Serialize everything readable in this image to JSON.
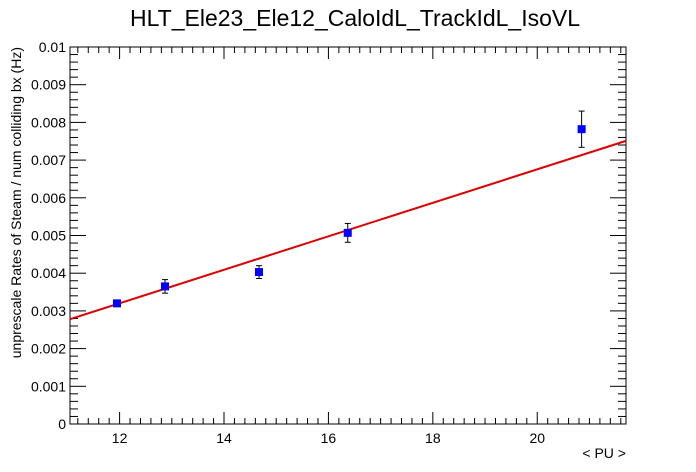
{
  "chart_data": {
    "type": "scatter",
    "title": "HLT_Ele23_Ele12_CaloIdL_TrackIdL_IsoVL",
    "xlabel": "< PU >",
    "ylabel": "unprescale Rates of Steam / num colliding bx (Hz)",
    "xlim": [
      11.05,
      21.7
    ],
    "ylim": [
      0,
      0.01
    ],
    "x_ticks": [
      "12",
      "14",
      "16",
      "18",
      "20"
    ],
    "x_tick_values": [
      12,
      14,
      16,
      18,
      20
    ],
    "y_ticks": [
      "0",
      "0.001",
      "0.002",
      "0.003",
      "0.004",
      "0.005",
      "0.006",
      "0.007",
      "0.008",
      "0.009",
      "0.01"
    ],
    "y_tick_values": [
      0,
      0.001,
      0.002,
      0.003,
      0.004,
      0.005,
      0.006,
      0.007,
      0.008,
      0.009,
      0.01
    ],
    "grid": false,
    "series": [
      {
        "type": "scatter",
        "marker": "square",
        "color": "#0000ff",
        "x": [
          11.95,
          12.87,
          14.67,
          16.37,
          20.85
        ],
        "y": [
          0.0032,
          0.00365,
          0.00403,
          0.00507,
          0.00782
        ],
        "yerr": [
          6e-05,
          0.00018,
          0.00017,
          0.00025,
          0.00048
        ]
      },
      {
        "type": "line",
        "color": "#dd0000",
        "x": [
          11.05,
          21.7
        ],
        "y": [
          0.00278,
          0.00751
        ]
      }
    ]
  }
}
